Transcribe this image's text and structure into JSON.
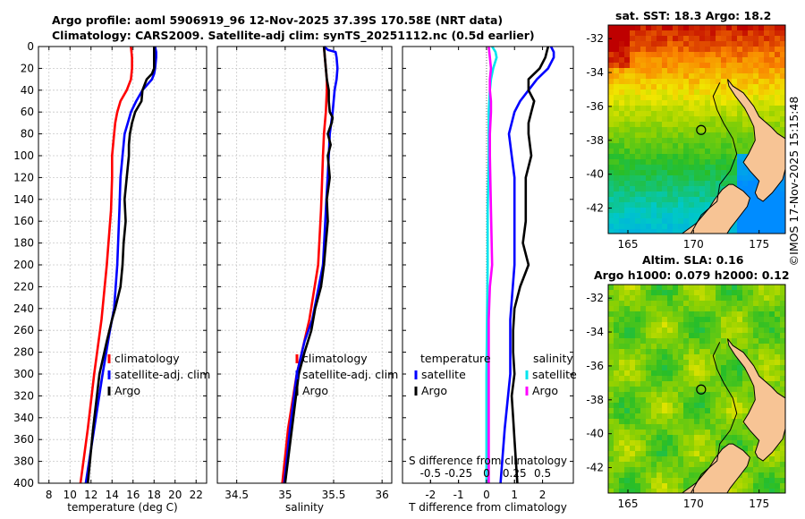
{
  "header": {
    "line1": "Argo profile: aoml 5906919_96 12-Nov-2025 37.39S 170.58E (NRT data)",
    "line2": "Climatology: CARS2009. Satellite-adj clim: synTS_20251112.nc (0.5d earlier)"
  },
  "credit": "©IMOS 17-Nov-2025 15:15:48",
  "depth_ticks": [
    "0",
    "20",
    "40",
    "60",
    "80",
    "100",
    "120",
    "140",
    "160",
    "180",
    "200",
    "220",
    "240",
    "260",
    "280",
    "300",
    "320",
    "340",
    "360",
    "380",
    "400"
  ],
  "colors": {
    "climatology": "#ff0000",
    "satellite": "#0000ff",
    "argo": "#000000",
    "sal_satellite": "#00e5ee",
    "sal_argo": "#ff00ff"
  },
  "chart_data": [
    {
      "type": "line",
      "id": "temperature",
      "xlabel": "temperature (deg C)",
      "ylabel": "depth",
      "xlim": [
        7,
        23
      ],
      "ylim": [
        400,
        0
      ],
      "xticks": [
        "8",
        "10",
        "12",
        "14",
        "16",
        "18",
        "20",
        "22"
      ],
      "grid": true,
      "legend": {
        "position": "bottom-right",
        "entries": [
          "climatology",
          "satellite-adj. clim",
          "Argo"
        ]
      },
      "series": [
        {
          "name": "climatology",
          "color": "#ff0000",
          "depth": [
            0,
            10,
            20,
            30,
            40,
            50,
            60,
            70,
            80,
            100,
            120,
            150,
            200,
            250,
            300,
            350,
            400
          ],
          "values": [
            15.8,
            15.9,
            15.9,
            15.8,
            15.4,
            14.8,
            14.5,
            14.3,
            14.2,
            14.0,
            14.0,
            13.9,
            13.5,
            13.0,
            12.3,
            11.7,
            11.0
          ]
        },
        {
          "name": "satellite",
          "color": "#0000ff",
          "depth": [
            0,
            5,
            10,
            20,
            25,
            30,
            40,
            50,
            60,
            70,
            80,
            100,
            120,
            150,
            200,
            240,
            260,
            300,
            350,
            400
          ],
          "values": [
            18.1,
            18.2,
            18.2,
            18.1,
            18.0,
            17.8,
            16.9,
            16.3,
            15.8,
            15.5,
            15.2,
            15.0,
            14.8,
            14.7,
            14.5,
            14.2,
            13.8,
            13.1,
            12.3,
            11.5
          ]
        },
        {
          "name": "Argo",
          "color": "#000000",
          "depth": [
            0,
            10,
            20,
            25,
            30,
            40,
            50,
            55,
            60,
            70,
            80,
            90,
            100,
            120,
            140,
            160,
            180,
            200,
            220,
            240,
            250,
            270,
            300,
            350,
            400
          ],
          "values": [
            18.0,
            18.0,
            18.0,
            17.8,
            17.3,
            16.9,
            16.8,
            16.5,
            16.2,
            15.9,
            15.7,
            15.6,
            15.6,
            15.4,
            15.2,
            15.3,
            15.1,
            15.0,
            14.8,
            14.3,
            14.0,
            13.5,
            12.8,
            12.2,
            11.7
          ]
        }
      ]
    },
    {
      "type": "line",
      "id": "salinity",
      "xlabel": "salinity",
      "ylabel": "depth",
      "xlim": [
        34.3,
        36.1
      ],
      "ylim": [
        400,
        0
      ],
      "xticks": [
        "34.5",
        "35",
        "35.5",
        "36"
      ],
      "grid": true,
      "legend": {
        "position": "bottom-right",
        "entries": [
          "climatology",
          "satellite-adj. clim",
          "Argo"
        ]
      },
      "series": [
        {
          "name": "climatology",
          "color": "#ff0000",
          "depth": [
            0,
            10,
            20,
            30,
            40,
            60,
            80,
            100,
            150,
            200,
            250,
            300,
            350,
            400
          ],
          "values": [
            35.4,
            35.41,
            35.42,
            35.43,
            35.43,
            35.42,
            35.4,
            35.39,
            35.37,
            35.34,
            35.25,
            35.12,
            35.03,
            34.97
          ]
        },
        {
          "name": "satellite",
          "color": "#0000ff",
          "depth": [
            0,
            3,
            5,
            10,
            20,
            30,
            40,
            60,
            80,
            100,
            150,
            200,
            250,
            270,
            300,
            350,
            400
          ],
          "values": [
            35.4,
            35.44,
            35.52,
            35.53,
            35.54,
            35.53,
            35.51,
            35.49,
            35.46,
            35.45,
            35.42,
            35.39,
            35.28,
            35.2,
            35.12,
            35.05,
            34.99
          ]
        },
        {
          "name": "Argo",
          "color": "#000000",
          "depth": [
            0,
            10,
            20,
            30,
            40,
            50,
            60,
            65,
            70,
            80,
            90,
            100,
            120,
            140,
            160,
            180,
            200,
            220,
            240,
            260,
            280,
            300,
            350,
            400
          ],
          "values": [
            35.4,
            35.41,
            35.42,
            35.43,
            35.45,
            35.45,
            35.46,
            35.49,
            35.48,
            35.44,
            35.47,
            35.44,
            35.46,
            35.43,
            35.44,
            35.42,
            35.4,
            35.37,
            35.31,
            35.27,
            35.2,
            35.14,
            35.07,
            35.0
          ]
        }
      ]
    },
    {
      "type": "line",
      "id": "difference",
      "xlabel": "T difference from climatology",
      "x2label": "S difference from climatology",
      "ylabel": "depth",
      "xlim": [
        -3,
        3.1
      ],
      "x2lim": [
        -0.75,
        0.775
      ],
      "ylim": [
        400,
        0
      ],
      "xticks": [
        "-2",
        "-1",
        "0",
        "1",
        "2"
      ],
      "x2ticks": [
        "-0.5",
        "-0.25",
        "0",
        "0.25",
        "0.5"
      ],
      "grid": false,
      "legend": {
        "position": "bottom",
        "temperature_title": "temperature",
        "salinity_title": "salinity",
        "temperature_entries": [
          "satellite",
          "Argo"
        ],
        "salinity_entries": [
          "satellite",
          "Argo"
        ]
      },
      "series": [
        {
          "name": "temperature satellite",
          "color": "#0000ff",
          "axis": "T",
          "depth": [
            0,
            5,
            10,
            20,
            30,
            40,
            50,
            60,
            80,
            100,
            120,
            150,
            200,
            250,
            300,
            350,
            400
          ],
          "values": [
            2.3,
            2.4,
            2.4,
            2.2,
            1.8,
            1.5,
            1.2,
            1.0,
            0.8,
            0.9,
            1.0,
            1.0,
            1.0,
            0.85,
            0.85,
            0.65,
            0.5
          ]
        },
        {
          "name": "temperature Argo",
          "color": "#000000",
          "axis": "T",
          "depth": [
            0,
            10,
            20,
            30,
            40,
            50,
            60,
            70,
            80,
            100,
            120,
            140,
            160,
            180,
            200,
            220,
            240,
            260,
            280,
            300,
            320,
            340,
            360,
            380,
            400
          ],
          "values": [
            2.2,
            2.1,
            1.9,
            1.5,
            1.5,
            1.7,
            1.6,
            1.5,
            1.5,
            1.6,
            1.4,
            1.4,
            1.4,
            1.3,
            1.5,
            1.2,
            1.0,
            0.95,
            0.95,
            1.0,
            0.9,
            0.95,
            1.0,
            1.05,
            1.1
          ]
        },
        {
          "name": "salinity satellite",
          "color": "#00e5ee",
          "axis": "S",
          "depth": [
            0,
            5,
            10,
            20,
            30,
            40,
            60,
            100,
            150,
            200,
            300,
            400
          ],
          "values": [
            0.05,
            0.08,
            0.09,
            0.06,
            0.04,
            0.03,
            0.02,
            0.02,
            0.01,
            0.01,
            0.0,
            0.0
          ]
        },
        {
          "name": "salinity Argo",
          "color": "#ff00ff",
          "axis": "S",
          "depth": [
            0,
            10,
            20,
            30,
            40,
            50,
            60,
            80,
            100,
            150,
            200,
            220,
            250,
            300,
            350,
            400
          ],
          "values": [
            0.02,
            0.03,
            0.04,
            0.03,
            0.03,
            0.04,
            0.04,
            0.03,
            0.03,
            0.04,
            0.05,
            0.03,
            0.02,
            0.02,
            0.02,
            0.02
          ]
        }
      ]
    },
    {
      "type": "heatmap",
      "id": "sst_map",
      "title": "sat. SST: 18.3 Argo: 18.2",
      "xticks": [
        "165",
        "170",
        "175"
      ],
      "yticks": [
        "-32",
        "-34",
        "-36",
        "-38",
        "-40",
        "-42"
      ],
      "xlim": [
        163.5,
        177
      ],
      "ylim": [
        -43.5,
        -31.2
      ],
      "argo_position": {
        "lon": 170.58,
        "lat": -37.39
      }
    },
    {
      "type": "heatmap",
      "id": "sla_map",
      "title_line1": "Altim. SLA: 0.16",
      "title_line2": "Argo h1000: 0.079 h2000: 0.12",
      "xticks": [
        "165",
        "170",
        "175"
      ],
      "yticks": [
        "-32",
        "-34",
        "-36",
        "-38",
        "-40",
        "-42"
      ],
      "xlim": [
        163.5,
        177
      ],
      "ylim": [
        -43.5,
        -31.2
      ],
      "argo_position": {
        "lon": 170.58,
        "lat": -37.39
      }
    }
  ]
}
